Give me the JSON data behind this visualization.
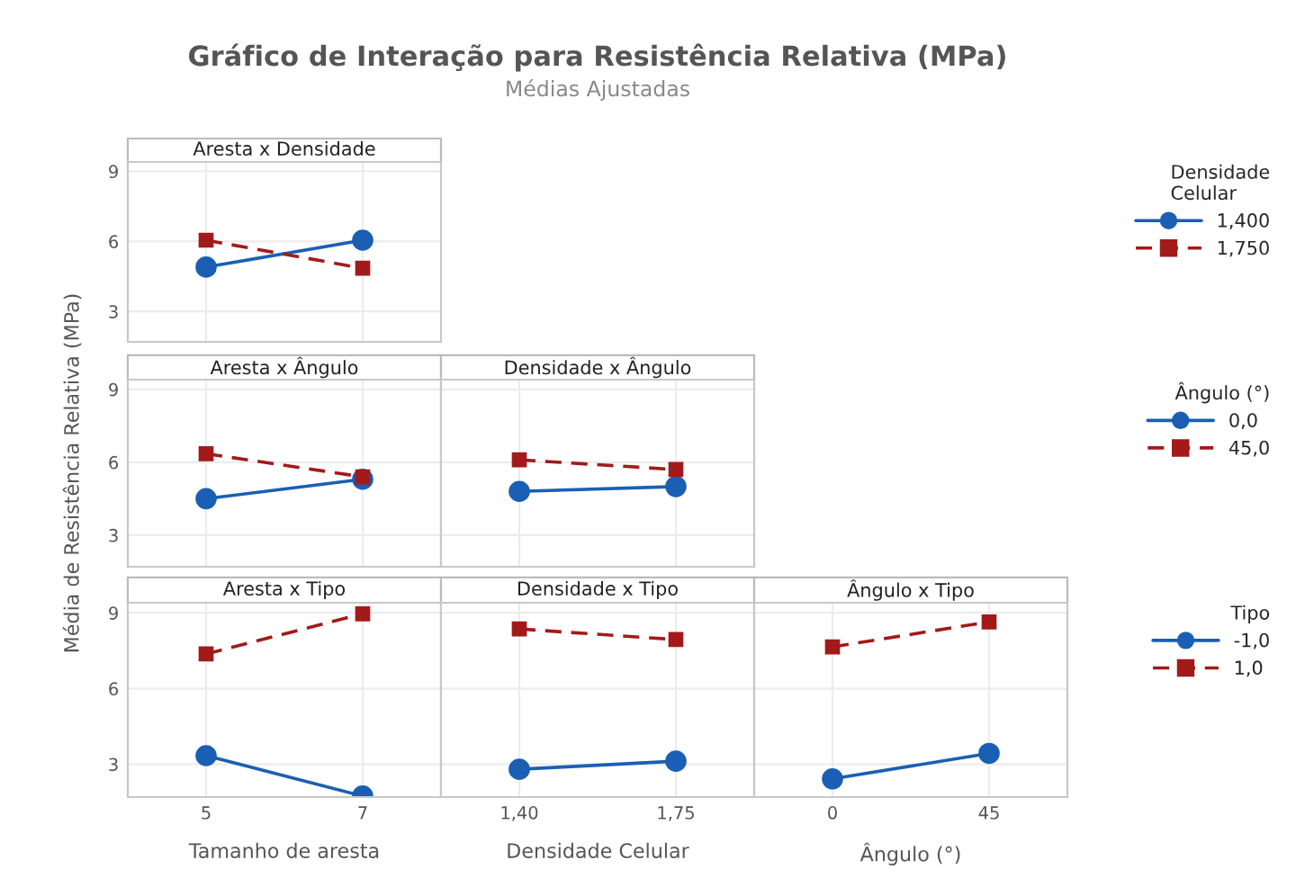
{
  "chart_data": [
    {
      "type": "line",
      "annotations": [
        "Aresta x Densidade"
      ],
      "categories": [
        "5",
        "7"
      ],
      "ylim": [
        1.7,
        9.4
      ],
      "yticks": [
        3,
        6,
        9
      ],
      "grid": true,
      "tick_labels": "y",
      "legend": "right",
      "legend_title": "Densidade\nCelular",
      "series": [
        {
          "name": "1,400",
          "color": "#1a5fb4",
          "marker": "circle",
          "line_style": "solid",
          "values": [
            4.9,
            6.05
          ]
        },
        {
          "name": "1,750",
          "color": "#a31a1a",
          "marker": "square",
          "line_style": "dashed",
          "values": [
            6.05,
            4.85
          ]
        }
      ]
    },
    {
      "type": "line",
      "ylabel": "Média de Resistência Relativa (MPa)",
      "annotations": [
        "Aresta x Ângulo"
      ],
      "categories": [
        "5",
        "7"
      ],
      "ylim": [
        1.7,
        9.4
      ],
      "yticks": [
        3,
        6,
        9
      ],
      "grid": true,
      "tick_labels": "y",
      "legend": "right",
      "legend_title": "Ângulo (°)",
      "series": [
        {
          "name": "0,0",
          "color": "#1a5fb4",
          "marker": "circle",
          "line_style": "solid",
          "values": [
            4.5,
            5.3
          ]
        },
        {
          "name": "45,0",
          "color": "#a31a1a",
          "marker": "square",
          "line_style": "dashed",
          "values": [
            6.35,
            5.4
          ]
        }
      ]
    },
    {
      "type": "line",
      "title": "Gráfico de Interação para Resistência Relativa (MPa)",
      "subtitle": "Médias Ajustadas",
      "annotations": [
        "Densidade x Ângulo"
      ],
      "categories": [
        "1,40",
        "1,75"
      ],
      "ylim": [
        1.7,
        9.4
      ],
      "yticks": [
        3,
        6,
        9
      ],
      "grid": true,
      "tick_labels": false,
      "series": [
        {
          "name": "0,0",
          "color": "#1a5fb4",
          "marker": "circle",
          "line_style": "solid",
          "values": [
            4.8,
            5.0
          ]
        },
        {
          "name": "45,0",
          "color": "#a31a1a",
          "marker": "square",
          "line_style": "dashed",
          "values": [
            6.1,
            5.7
          ]
        }
      ]
    },
    {
      "type": "line",
      "xlabel": "Tamanho de aresta",
      "annotations": [
        "Aresta x Tipo"
      ],
      "categories": [
        "5",
        "7"
      ],
      "ylim": [
        1.7,
        9.4
      ],
      "yticks": [
        3,
        6,
        9
      ],
      "grid": true,
      "legend": "right",
      "legend_title": "Tipo",
      "series": [
        {
          "name": "-1,0",
          "color": "#1a5fb4",
          "marker": "circle",
          "line_style": "solid",
          "values": [
            3.34,
            1.74
          ]
        },
        {
          "name": "1,0",
          "color": "#a31a1a",
          "marker": "square",
          "line_style": "dashed",
          "values": [
            7.37,
            8.96
          ]
        }
      ]
    },
    {
      "type": "line",
      "xlabel": "Densidade Celular",
      "annotations": [
        "Densidade x Tipo"
      ],
      "categories": [
        "1,40",
        "1,75"
      ],
      "ylim": [
        1.7,
        9.4
      ],
      "yticks": [
        3,
        6,
        9
      ],
      "grid": true,
      "tick_labels": "x",
      "series": [
        {
          "name": "-1,0",
          "color": "#1a5fb4",
          "marker": "circle",
          "line_style": "solid",
          "values": [
            2.8,
            3.12
          ]
        },
        {
          "name": "1,0",
          "color": "#a31a1a",
          "marker": "square",
          "line_style": "dashed",
          "values": [
            8.36,
            7.94
          ]
        }
      ]
    },
    {
      "type": "line",
      "xlabel": "Ângulo (°)",
      "annotations": [
        "Ângulo x Tipo"
      ],
      "categories": [
        "0",
        "45"
      ],
      "ylim": [
        1.7,
        9.4
      ],
      "yticks": [
        3,
        6,
        9
      ],
      "grid": true,
      "tick_labels": "x",
      "series": [
        {
          "name": "-1,0",
          "color": "#1a5fb4",
          "marker": "circle",
          "line_style": "solid",
          "values": [
            2.42,
            3.43
          ]
        },
        {
          "name": "1,0",
          "color": "#a31a1a",
          "marker": "square",
          "line_style": "dashed",
          "values": [
            7.65,
            8.64
          ]
        }
      ]
    }
  ]
}
